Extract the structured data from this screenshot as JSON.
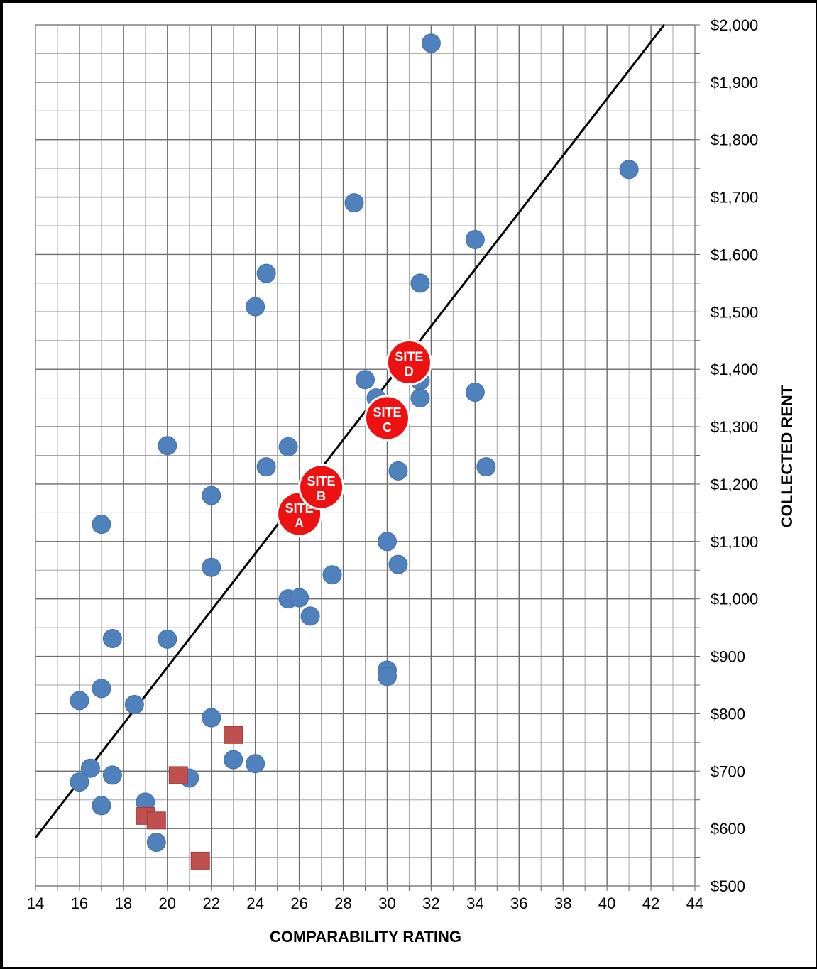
{
  "chart_data": {
    "type": "scatter",
    "title": "",
    "xlabel": "COMPARABILITY RATING",
    "ylabel": "COLLECTED RENT",
    "xlim": [
      14,
      44
    ],
    "ylim": [
      500,
      2000
    ],
    "x_major_step": 2,
    "x_minor_step": 1,
    "y_major_step": 100,
    "y_minor_step": 50,
    "y_axis_side": "right",
    "grid": true,
    "legend": "none",
    "x_tick_labels": [
      "14",
      "16",
      "18",
      "20",
      "22",
      "24",
      "26",
      "28",
      "30",
      "32",
      "34",
      "36",
      "38",
      "40",
      "42",
      "44"
    ],
    "y_tick_labels": [
      "$500",
      "$600",
      "$700",
      "$800",
      "$900",
      "$1,000",
      "$1,100",
      "$1,200",
      "$1,300",
      "$1,400",
      "$1,500",
      "$1,600",
      "$1,700",
      "$1,800",
      "$1,900",
      "$2,000"
    ],
    "series": [
      {
        "marker": "circle",
        "color": "#4f81bd",
        "points": [
          [
            32,
            1968
          ],
          [
            41,
            1748
          ],
          [
            28.5,
            1690
          ],
          [
            34,
            1626
          ],
          [
            24.5,
            1567
          ],
          [
            31.5,
            1550
          ],
          [
            24,
            1509
          ],
          [
            29,
            1382
          ],
          [
            31.5,
            1380
          ],
          [
            29.5,
            1350
          ],
          [
            31.5,
            1350
          ],
          [
            34,
            1360
          ],
          [
            20,
            1267
          ],
          [
            25.5,
            1265
          ],
          [
            24.5,
            1230
          ],
          [
            30.5,
            1223
          ],
          [
            34.5,
            1230
          ],
          [
            22,
            1180
          ],
          [
            17,
            1130
          ],
          [
            30,
            1100
          ],
          [
            30.5,
            1060
          ],
          [
            22,
            1055
          ],
          [
            27.5,
            1042
          ],
          [
            25.5,
            1000
          ],
          [
            26,
            1002
          ],
          [
            26.5,
            970
          ],
          [
            17.5,
            931
          ],
          [
            20,
            930
          ],
          [
            30,
            876
          ],
          [
            30,
            865
          ],
          [
            17,
            844
          ],
          [
            16,
            823
          ],
          [
            18.5,
            816
          ],
          [
            22,
            793
          ],
          [
            23,
            720
          ],
          [
            24,
            713
          ],
          [
            16.5,
            705
          ],
          [
            17.5,
            693
          ],
          [
            21,
            688
          ],
          [
            16,
            681
          ],
          [
            19,
            646
          ],
          [
            17,
            640
          ],
          [
            19.5,
            576
          ]
        ]
      },
      {
        "marker": "square",
        "color": "#c0504d",
        "points": [
          [
            23,
            763
          ],
          [
            20.5,
            693
          ],
          [
            19,
            622
          ],
          [
            19.5,
            614
          ],
          [
            21.5,
            544
          ]
        ]
      }
    ],
    "sites": [
      {
        "line1": "SITE",
        "line2": "A",
        "x": 26,
        "y": 1148
      },
      {
        "line1": "SITE",
        "line2": "B",
        "x": 27,
        "y": 1195
      },
      {
        "line1": "SITE",
        "line2": "C",
        "x": 30,
        "y": 1315
      },
      {
        "line1": "SITE",
        "line2": "D",
        "x": 31,
        "y": 1412
      }
    ],
    "site_color": "#ee1111",
    "trendline": {
      "color": "#000000",
      "from": [
        14,
        584
      ],
      "to": [
        42.6,
        2000
      ]
    }
  }
}
